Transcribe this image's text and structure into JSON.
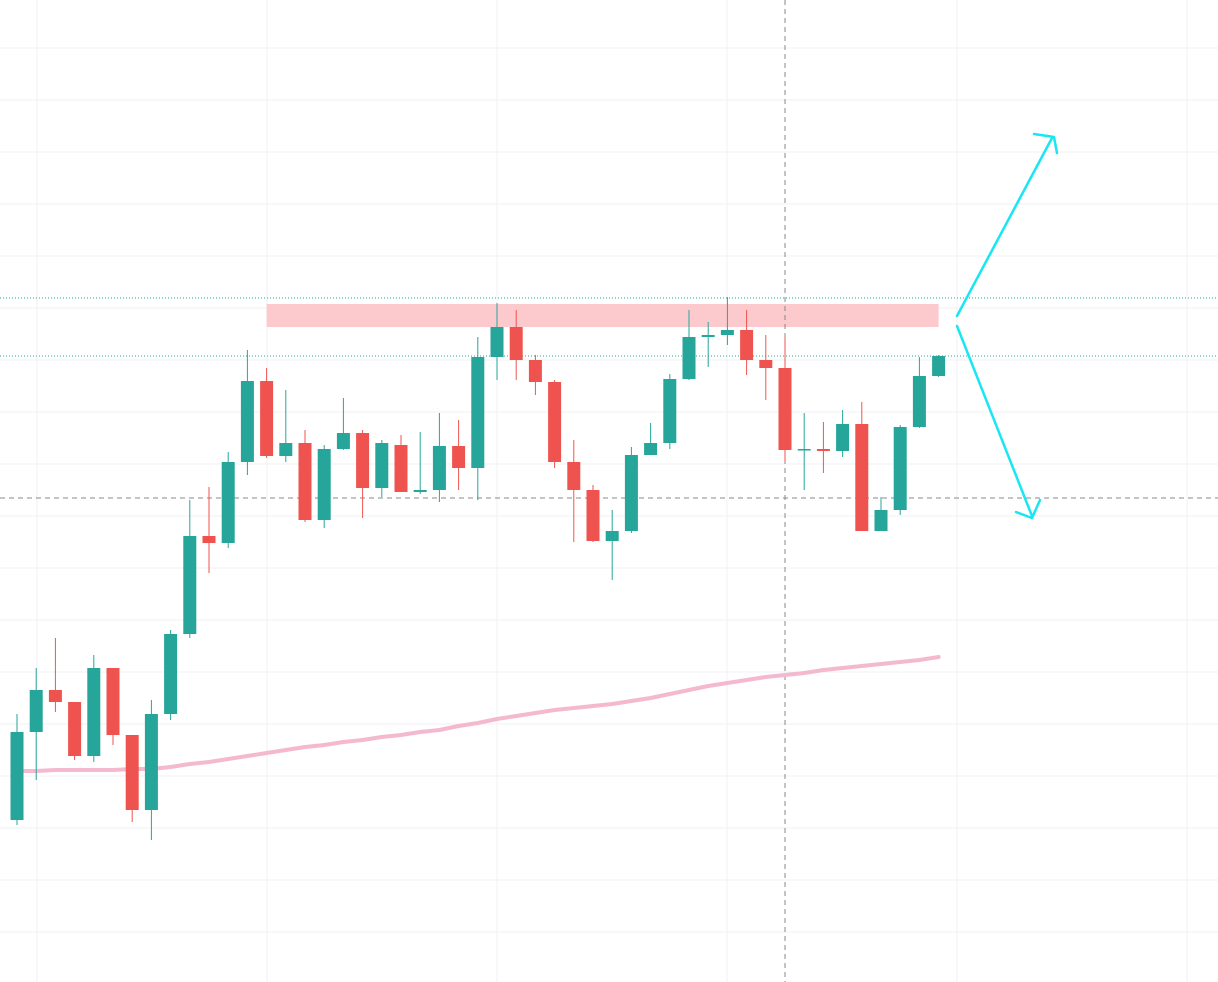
{
  "chart_data": {
    "type": "candlestick",
    "ylim": [
      0,
      982
    ],
    "up_color": "#26a69a",
    "down_color": "#ef5350",
    "candles": [
      [
        162,
        268,
        157,
        250
      ],
      [
        250,
        314,
        202,
        292
      ],
      [
        292,
        344,
        270,
        280
      ],
      [
        280,
        280,
        222,
        226
      ],
      [
        226,
        327,
        220,
        314
      ],
      [
        314,
        314,
        237,
        247
      ],
      [
        247,
        247,
        160,
        172
      ],
      [
        172,
        282,
        142,
        268
      ],
      [
        268,
        352,
        262,
        348
      ],
      [
        348,
        482,
        344,
        446
      ],
      [
        446,
        495,
        409,
        439
      ],
      [
        439,
        530,
        434,
        520
      ],
      [
        520,
        632,
        507,
        601
      ],
      [
        601,
        614,
        524,
        526
      ],
      [
        526,
        592,
        520,
        539
      ],
      [
        539,
        552,
        460,
        462
      ],
      [
        462,
        537,
        454,
        533
      ],
      [
        533,
        584,
        532,
        549
      ],
      [
        549,
        552,
        464,
        494
      ],
      [
        494,
        542,
        485,
        539
      ],
      [
        537,
        547,
        490,
        490
      ],
      [
        490,
        550,
        488,
        492
      ],
      [
        492,
        569,
        480,
        536
      ],
      [
        536,
        562,
        492,
        514
      ],
      [
        514,
        645,
        482,
        625
      ],
      [
        625,
        679,
        602,
        655
      ],
      [
        655,
        672,
        602,
        622
      ],
      [
        622,
        627,
        587,
        600
      ],
      [
        600,
        602,
        514,
        520
      ],
      [
        520,
        542,
        440,
        492
      ],
      [
        492,
        497,
        440,
        441
      ],
      [
        441,
        472,
        402,
        451
      ],
      [
        451,
        535,
        449,
        527
      ],
      [
        527,
        559,
        527,
        539
      ],
      [
        539,
        608,
        533,
        603
      ],
      [
        603,
        672,
        602,
        645
      ],
      [
        645,
        660,
        615,
        647
      ],
      [
        647,
        685,
        637,
        652
      ],
      [
        652,
        672,
        607,
        622
      ],
      [
        622,
        647,
        582,
        614
      ],
      [
        614,
        644,
        520,
        532
      ],
      [
        532,
        569,
        492,
        533
      ],
      [
        533,
        560,
        509,
        531
      ],
      [
        531,
        572,
        525,
        558
      ],
      [
        558,
        580,
        451,
        451
      ],
      [
        451,
        485,
        451,
        472
      ],
      [
        472,
        557,
        467,
        555
      ],
      [
        555,
        625,
        554,
        606
      ],
      [
        606,
        627,
        605,
        626
      ]
    ],
    "moving_average": {
      "color": "#f4b8cf",
      "values": [
        211,
        211,
        212,
        212,
        212,
        212,
        213,
        213,
        215,
        218,
        220,
        223,
        226,
        229,
        232,
        235,
        237,
        240,
        242,
        245,
        247,
        250,
        252,
        256,
        259,
        263,
        266,
        269,
        272,
        274,
        276,
        278,
        281,
        284,
        288,
        292,
        296,
        299,
        302,
        305,
        307,
        309,
        312,
        314,
        316,
        318,
        320,
        322,
        325
      ]
    },
    "zone": {
      "low": 655,
      "high": 678,
      "from": 13,
      "to": 48,
      "color": "#fcc9cd"
    },
    "price_lines": [
      684,
      626
    ],
    "crosshair": {
      "price": 484,
      "index": 40
    },
    "grid": true
  }
}
